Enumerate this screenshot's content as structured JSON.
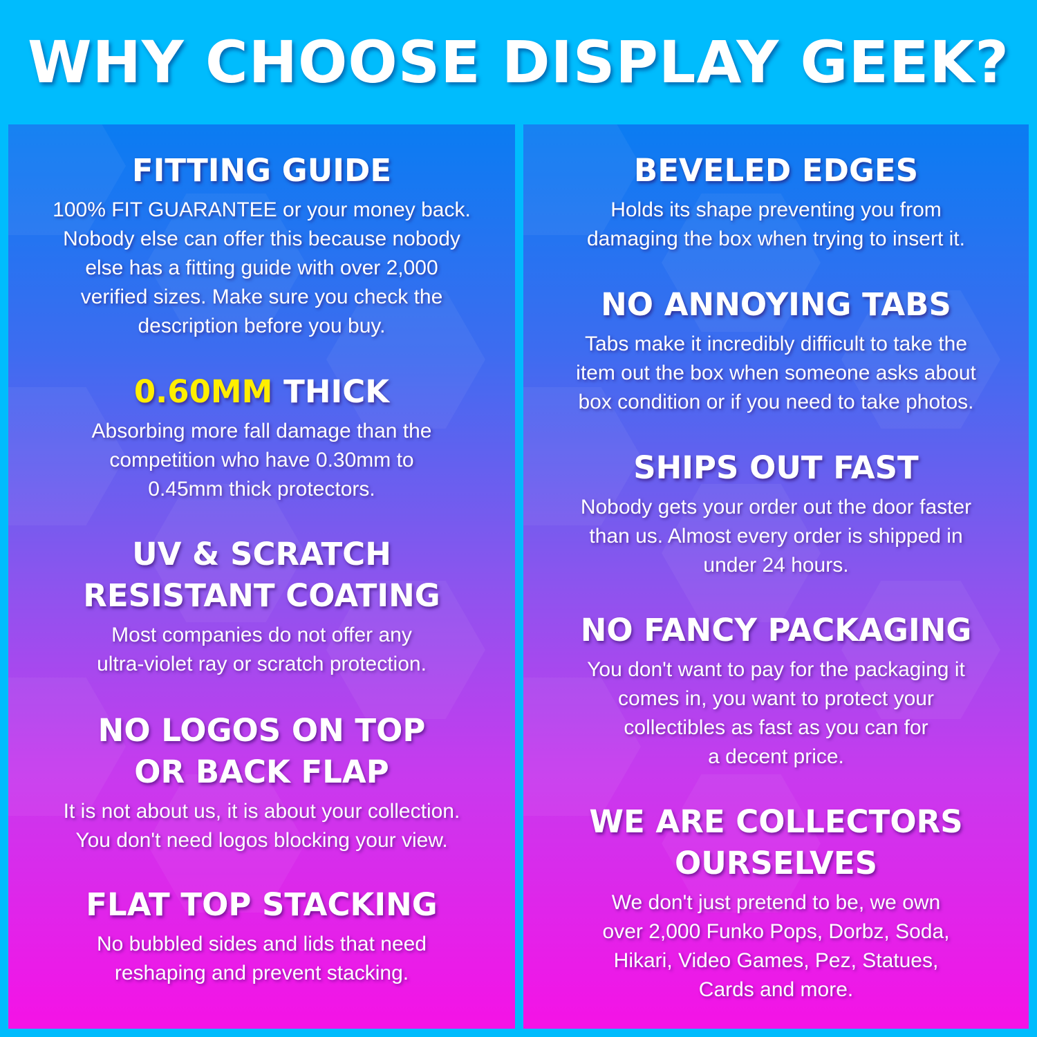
{
  "header": {
    "title": "WHY CHOOSE DISPLAY GEEK?"
  },
  "colors": {
    "background": "#00bcfd",
    "panel_top": "#0a7cf2",
    "panel_bottom": "#f512e6",
    "highlight": "#ffee00",
    "text": "#ffffff"
  },
  "left": [
    {
      "title": [
        "FITTING GUIDE"
      ],
      "body": [
        "100% FIT GUARANTEE or your money back.",
        "Nobody else can offer this because nobody",
        "else has a fitting guide with over 2,000",
        "verified sizes. Make sure you check the",
        "description before you buy."
      ]
    },
    {
      "title_highlight": "0.60MM",
      "title": [
        " THICK"
      ],
      "body": [
        "Absorbing more fall damage than the",
        "competition who have 0.30mm to",
        "0.45mm thick protectors."
      ]
    },
    {
      "title": [
        "UV & SCRATCH",
        "RESISTANT COATING"
      ],
      "body": [
        "Most companies do not offer any",
        "ultra-violet ray or scratch protection."
      ]
    },
    {
      "title": [
        "NO LOGOS ON TOP",
        "OR BACK FLAP"
      ],
      "body": [
        "It is not about us, it is about your collection.",
        "You don't need logos blocking your view."
      ]
    },
    {
      "title": [
        "FLAT TOP STACKING"
      ],
      "body": [
        "No bubbled sides and lids that need",
        "reshaping and prevent stacking."
      ]
    }
  ],
  "right": [
    {
      "title": [
        "BEVELED EDGES"
      ],
      "body": [
        "Holds its shape preventing you from",
        "damaging the box when trying to insert it."
      ]
    },
    {
      "title": [
        "NO ANNOYING TABS"
      ],
      "body": [
        "Tabs make it incredibly difficult to take the",
        "item out the box when someone asks about",
        "box condition or if you need to take photos."
      ]
    },
    {
      "title": [
        "SHIPS OUT FAST"
      ],
      "body": [
        "Nobody gets your order out the door faster",
        "than us. Almost every order is shipped in",
        "under 24 hours."
      ]
    },
    {
      "title": [
        "NO FANCY PACKAGING"
      ],
      "body": [
        "You don't want to pay for the packaging it",
        "comes in, you want to protect your",
        "collectibles as fast as you can for",
        "a decent price."
      ]
    },
    {
      "title": [
        "WE ARE COLLECTORS",
        "OURSELVES"
      ],
      "body": [
        "We don't just pretend to be, we own",
        "over 2,000 Funko Pops, Dorbz, Soda,",
        "Hikari, Video Games, Pez, Statues,",
        "Cards and more."
      ]
    }
  ]
}
